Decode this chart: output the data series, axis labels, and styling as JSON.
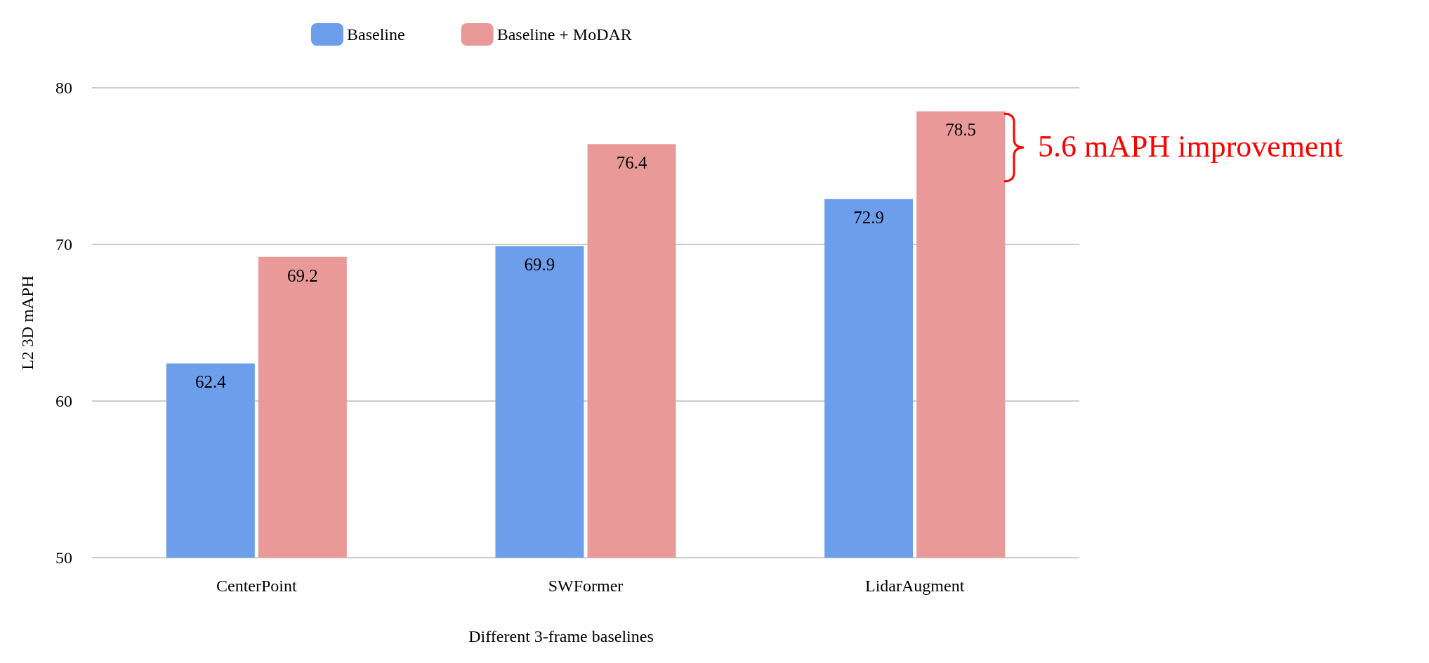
{
  "chart_data": {
    "type": "bar",
    "xlabel": "Different 3-frame baselines",
    "ylabel": "L2 3D mAPH",
    "categories": [
      "CenterPoint",
      "SWFormer",
      "LidarAugment"
    ],
    "series": [
      {
        "name": "Baseline",
        "color": "#6d9eeb",
        "values": [
          62.4,
          69.9,
          72.9
        ]
      },
      {
        "name": "Baseline + MoDAR",
        "color": "#ea9999",
        "values": [
          69.2,
          76.4,
          78.5
        ]
      }
    ],
    "ylim": [
      50,
      80
    ],
    "yticks": [
      50,
      60,
      70,
      80
    ],
    "grid": "y",
    "legend": "top",
    "data_labels": true,
    "annotations": [
      "5.6 mAPH improvement"
    ]
  }
}
